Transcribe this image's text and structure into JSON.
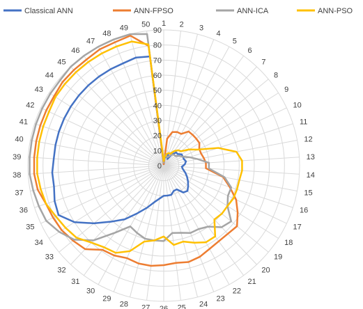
{
  "chart_data": {
    "type": "radar",
    "title": "",
    "categories": [
      "1",
      "2",
      "3",
      "4",
      "5",
      "6",
      "7",
      "8",
      "9",
      "10",
      "11",
      "12",
      "13",
      "14",
      "15",
      "16",
      "17",
      "18",
      "19",
      "20",
      "21",
      "22",
      "23",
      "24",
      "25",
      "26",
      "27",
      "28",
      "29",
      "30",
      "31",
      "32",
      "33",
      "34",
      "35",
      "36",
      "37",
      "38",
      "39",
      "40",
      "41",
      "42",
      "43",
      "44",
      "45",
      "46",
      "47",
      "48",
      "49",
      "50"
    ],
    "rlim": [
      0,
      90
    ],
    "ticks": [
      0,
      10,
      20,
      30,
      40,
      50,
      60,
      70,
      80,
      90
    ],
    "tick_labels": [
      "0",
      "10",
      "20",
      "30",
      "40",
      "50",
      "60",
      "70",
      "80",
      "90"
    ],
    "grid": true,
    "legend_position": "top",
    "series": [
      {
        "name": "Classical ANN",
        "color": "#4472C4",
        "values": [
          1,
          5,
          6,
          8,
          5,
          9,
          12,
          12,
          14,
          14,
          14,
          15,
          14,
          12,
          13,
          15,
          17,
          19,
          21,
          23,
          22,
          18,
          18,
          20,
          20,
          20,
          22,
          25,
          30,
          36,
          44,
          51,
          60,
          70,
          77,
          76,
          74,
          74,
          73,
          73,
          73,
          73,
          73,
          73,
          73,
          73,
          73,
          73,
          74,
          73
        ]
      },
      {
        "name": "ANN-FPSO",
        "color": "#ED7D31",
        "values": [
          1,
          18,
          23,
          24,
          24,
          28,
          28,
          28,
          28,
          26,
          26,
          27,
          28,
          28,
          40,
          46,
          53,
          58,
          63,
          62,
          62,
          63,
          65,
          66,
          65,
          66,
          67,
          67,
          66,
          68,
          69,
          76,
          78,
          80,
          81,
          82,
          85,
          86,
          86,
          86,
          86,
          86,
          86,
          87,
          87,
          87,
          88,
          88,
          89,
          80
        ]
      },
      {
        "name": "ANN-ICA",
        "color": "#A5A5A5",
        "values": [
          2,
          7,
          7,
          6,
          7,
          9,
          10,
          10,
          12,
          14,
          18,
          23,
          30,
          30,
          41,
          47,
          47,
          50,
          58,
          56,
          50,
          48,
          48,
          46,
          45,
          50,
          50,
          50,
          48,
          46,
          55,
          68,
          77,
          82,
          86,
          87,
          88,
          89,
          89,
          89,
          89,
          89,
          89,
          89,
          90,
          90,
          90,
          90,
          90,
          88
        ]
      },
      {
        "name": "ANN-PSO",
        "color": "#FFC000",
        "values": [
          3,
          6,
          8,
          9,
          9,
          12,
          14,
          15,
          20,
          25,
          38,
          49,
          52,
          52,
          51,
          51,
          51,
          50,
          50,
          49,
          58,
          58,
          55,
          52,
          53,
          47,
          50,
          52,
          61,
          66,
          67,
          70,
          75,
          77,
          79,
          82,
          83,
          84,
          84,
          84,
          84,
          84,
          85,
          85,
          85,
          85,
          85,
          85,
          85,
          81
        ]
      }
    ]
  }
}
